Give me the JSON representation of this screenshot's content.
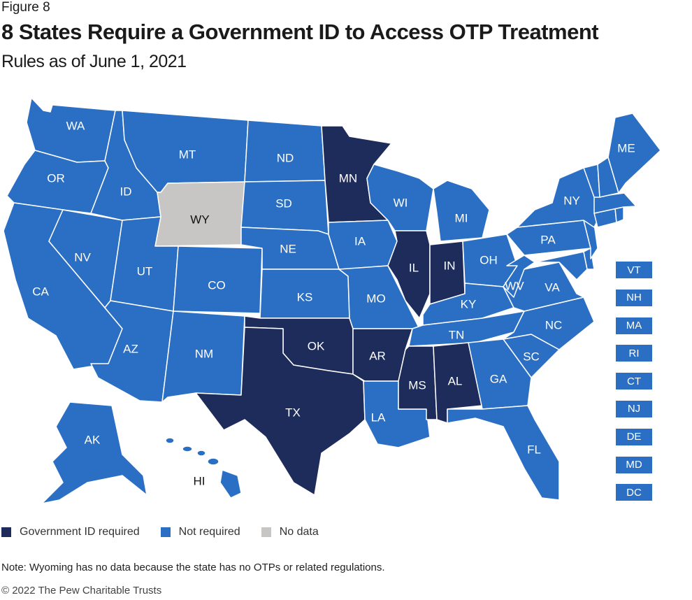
{
  "figure_label": "Figure 8",
  "title": "8 States Require a Government ID to Access OTP Treatment",
  "subtitle": "Rules as of June 1, 2021",
  "colors": {
    "required": "#1e2c5c",
    "not_required": "#2a6fc3",
    "no_data": "#c8c6c4"
  },
  "legend": [
    {
      "label": "Government ID required",
      "status": "required"
    },
    {
      "label": "Not required",
      "status": "not_required"
    },
    {
      "label": "No data",
      "status": "no_data"
    }
  ],
  "states": {
    "WA": "not_required",
    "OR": "not_required",
    "CA": "not_required",
    "NV": "not_required",
    "ID": "not_required",
    "MT": "not_required",
    "WY": "no_data",
    "UT": "not_required",
    "AZ": "not_required",
    "CO": "not_required",
    "NM": "not_required",
    "ND": "not_required",
    "SD": "not_required",
    "NE": "not_required",
    "KS": "not_required",
    "OK": "required",
    "TX": "required",
    "MN": "required",
    "IA": "not_required",
    "MO": "not_required",
    "AR": "required",
    "LA": "not_required",
    "WI": "not_required",
    "IL": "required",
    "MI": "not_required",
    "IN": "required",
    "OH": "not_required",
    "KY": "not_required",
    "TN": "not_required",
    "MS": "required",
    "AL": "required",
    "GA": "not_required",
    "FL": "not_required",
    "SC": "not_required",
    "NC": "not_required",
    "VA": "not_required",
    "WV": "not_required",
    "PA": "not_required",
    "NY": "not_required",
    "ME": "not_required",
    "AK": "not_required",
    "HI": "not_required"
  },
  "small_states": [
    {
      "abbr": "VT",
      "status": "not_required"
    },
    {
      "abbr": "NH",
      "status": "not_required"
    },
    {
      "abbr": "MA",
      "status": "not_required"
    },
    {
      "abbr": "RI",
      "status": "not_required"
    },
    {
      "abbr": "CT",
      "status": "not_required"
    },
    {
      "abbr": "NJ",
      "status": "not_required"
    },
    {
      "abbr": "DE",
      "status": "not_required"
    },
    {
      "abbr": "MD",
      "status": "not_required"
    },
    {
      "abbr": "DC",
      "status": "not_required"
    }
  ],
  "note": "Note: Wyoming has no data because the state has no OTPs or related regulations.",
  "copyright": "© 2022 The Pew Charitable Trusts"
}
